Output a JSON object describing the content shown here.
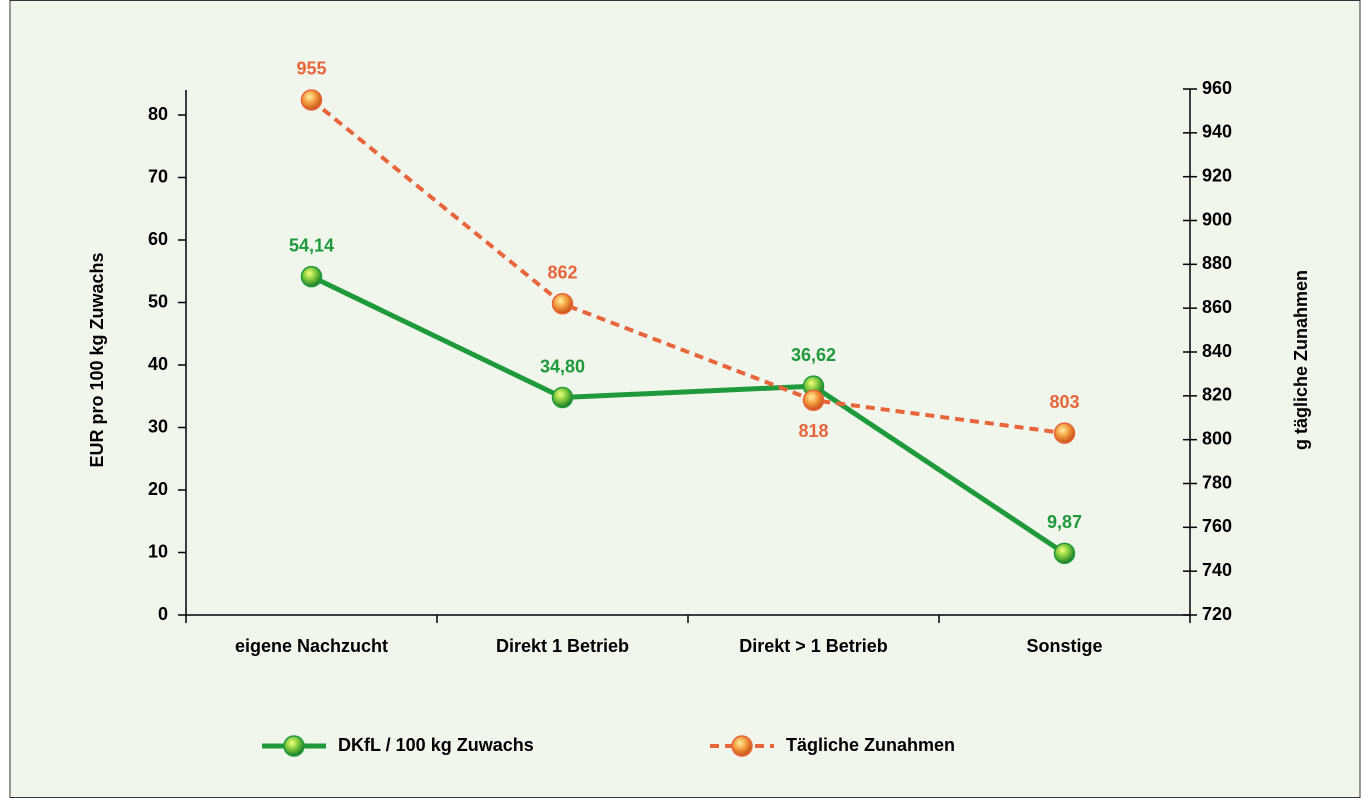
{
  "chart_data": {
    "type": "line",
    "categories": [
      "eigene Nachzucht",
      "Direkt 1 Betrieb",
      "Direkt > 1 Betrieb",
      "Sonstige"
    ],
    "ylabel": "EUR pro 100 kg Zuwachs",
    "y2label": "g tägliche Zunahmen",
    "ylim": [
      0,
      84
    ],
    "yticks": [
      0,
      10,
      20,
      30,
      40,
      50,
      60,
      70,
      80
    ],
    "y2lim": [
      720,
      960
    ],
    "y2ticks": [
      720,
      740,
      760,
      780,
      800,
      820,
      840,
      860,
      880,
      900,
      920,
      940,
      960
    ],
    "series": [
      {
        "name": "DKfL / 100 kg Zuwachs",
        "color": "#1e9a3a",
        "values": [
          54.14,
          34.8,
          36.62,
          9.87
        ],
        "value_labels": [
          "54,14",
          "34,80",
          "36,62",
          "9,87"
        ]
      },
      {
        "name": "Tägliche Zunahmen",
        "color": "#e8653a",
        "values": [
          955,
          862,
          818,
          803
        ],
        "axis": "y2"
      }
    ]
  }
}
